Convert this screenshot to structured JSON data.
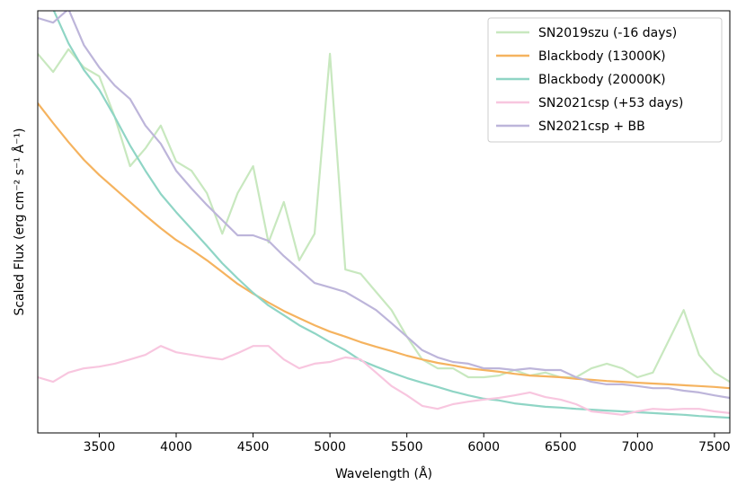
{
  "chart_data": {
    "type": "line",
    "xlabel": "Wavelength (Å)",
    "ylabel": "Scaled Flux (erg cm⁻² s⁻¹ Å⁻¹)",
    "x": [
      3100,
      3200,
      3300,
      3400,
      3500,
      3600,
      3700,
      3800,
      3900,
      4000,
      4100,
      4200,
      4300,
      4400,
      4500,
      4600,
      4700,
      4800,
      4900,
      5000,
      5100,
      5200,
      5300,
      5400,
      5500,
      5600,
      5700,
      5800,
      5900,
      6000,
      6100,
      6200,
      6300,
      6400,
      6500,
      6600,
      6700,
      6800,
      6900,
      7000,
      7100,
      7200,
      7300,
      7400,
      7500,
      7600
    ],
    "xlim": [
      3100,
      7600
    ],
    "xticks": [
      3500,
      4000,
      4500,
      5000,
      5500,
      6000,
      6500,
      7000,
      7500
    ],
    "ylim": [
      0,
      10
    ],
    "legend": "upper right",
    "series": [
      {
        "name": "SN2019szu (-16 days)",
        "color": "#c8e8bf",
        "values": [
          8.98,
          8.55,
          9.09,
          8.66,
          8.45,
          7.49,
          6.32,
          6.74,
          7.28,
          6.43,
          6.21,
          5.68,
          4.72,
          5.68,
          6.32,
          4.51,
          5.47,
          4.09,
          4.72,
          8.98,
          3.87,
          3.77,
          3.34,
          2.91,
          2.28,
          1.74,
          1.53,
          1.53,
          1.32,
          1.32,
          1.36,
          1.49,
          1.36,
          1.43,
          1.32,
          1.32,
          1.53,
          1.64,
          1.53,
          1.32,
          1.43,
          2.17,
          2.91,
          1.85,
          1.43,
          1.21
        ]
      },
      {
        "name": "Blackbody (13000K)",
        "color": "#f5b35f",
        "values": [
          7.81,
          7.34,
          6.89,
          6.47,
          6.11,
          5.79,
          5.47,
          5.15,
          4.85,
          4.57,
          4.34,
          4.09,
          3.81,
          3.53,
          3.3,
          3.09,
          2.89,
          2.72,
          2.55,
          2.4,
          2.28,
          2.15,
          2.04,
          1.94,
          1.83,
          1.74,
          1.66,
          1.6,
          1.53,
          1.49,
          1.45,
          1.4,
          1.36,
          1.34,
          1.32,
          1.28,
          1.26,
          1.23,
          1.21,
          1.19,
          1.17,
          1.15,
          1.13,
          1.11,
          1.09,
          1.06
        ]
      },
      {
        "name": "Blackbody (20000K)",
        "color": "#8fd5c5",
        "values": [
          10.79,
          10.04,
          9.23,
          8.6,
          8.13,
          7.49,
          6.81,
          6.21,
          5.66,
          5.23,
          4.83,
          4.43,
          4.02,
          3.66,
          3.32,
          3.02,
          2.79,
          2.55,
          2.36,
          2.15,
          1.96,
          1.72,
          1.57,
          1.43,
          1.3,
          1.19,
          1.09,
          0.98,
          0.89,
          0.81,
          0.77,
          0.7,
          0.66,
          0.62,
          0.6,
          0.57,
          0.55,
          0.53,
          0.51,
          0.49,
          0.47,
          0.45,
          0.43,
          0.4,
          0.38,
          0.36
        ]
      },
      {
        "name": "SN2021csp (+53 days)",
        "color": "#f8c6df",
        "values": [
          1.32,
          1.21,
          1.43,
          1.53,
          1.57,
          1.64,
          1.74,
          1.85,
          2.06,
          1.91,
          1.85,
          1.79,
          1.74,
          1.89,
          2.06,
          2.06,
          1.74,
          1.53,
          1.64,
          1.68,
          1.79,
          1.74,
          1.43,
          1.11,
          0.89,
          0.64,
          0.57,
          0.68,
          0.74,
          0.79,
          0.83,
          0.89,
          0.96,
          0.85,
          0.79,
          0.68,
          0.51,
          0.47,
          0.43,
          0.51,
          0.57,
          0.55,
          0.57,
          0.57,
          0.51,
          0.47
        ]
      },
      {
        "name": "SN2021csp + BB",
        "color": "#bdb5da",
        "values": [
          9.83,
          9.72,
          10.04,
          9.19,
          8.66,
          8.23,
          7.91,
          7.28,
          6.85,
          6.21,
          5.79,
          5.4,
          5.04,
          4.68,
          4.68,
          4.55,
          4.19,
          3.87,
          3.55,
          3.45,
          3.34,
          3.13,
          2.91,
          2.6,
          2.28,
          1.96,
          1.79,
          1.68,
          1.64,
          1.53,
          1.53,
          1.49,
          1.53,
          1.49,
          1.49,
          1.32,
          1.21,
          1.15,
          1.15,
          1.11,
          1.06,
          1.06,
          1.0,
          0.96,
          0.89,
          0.83
        ]
      }
    ]
  }
}
